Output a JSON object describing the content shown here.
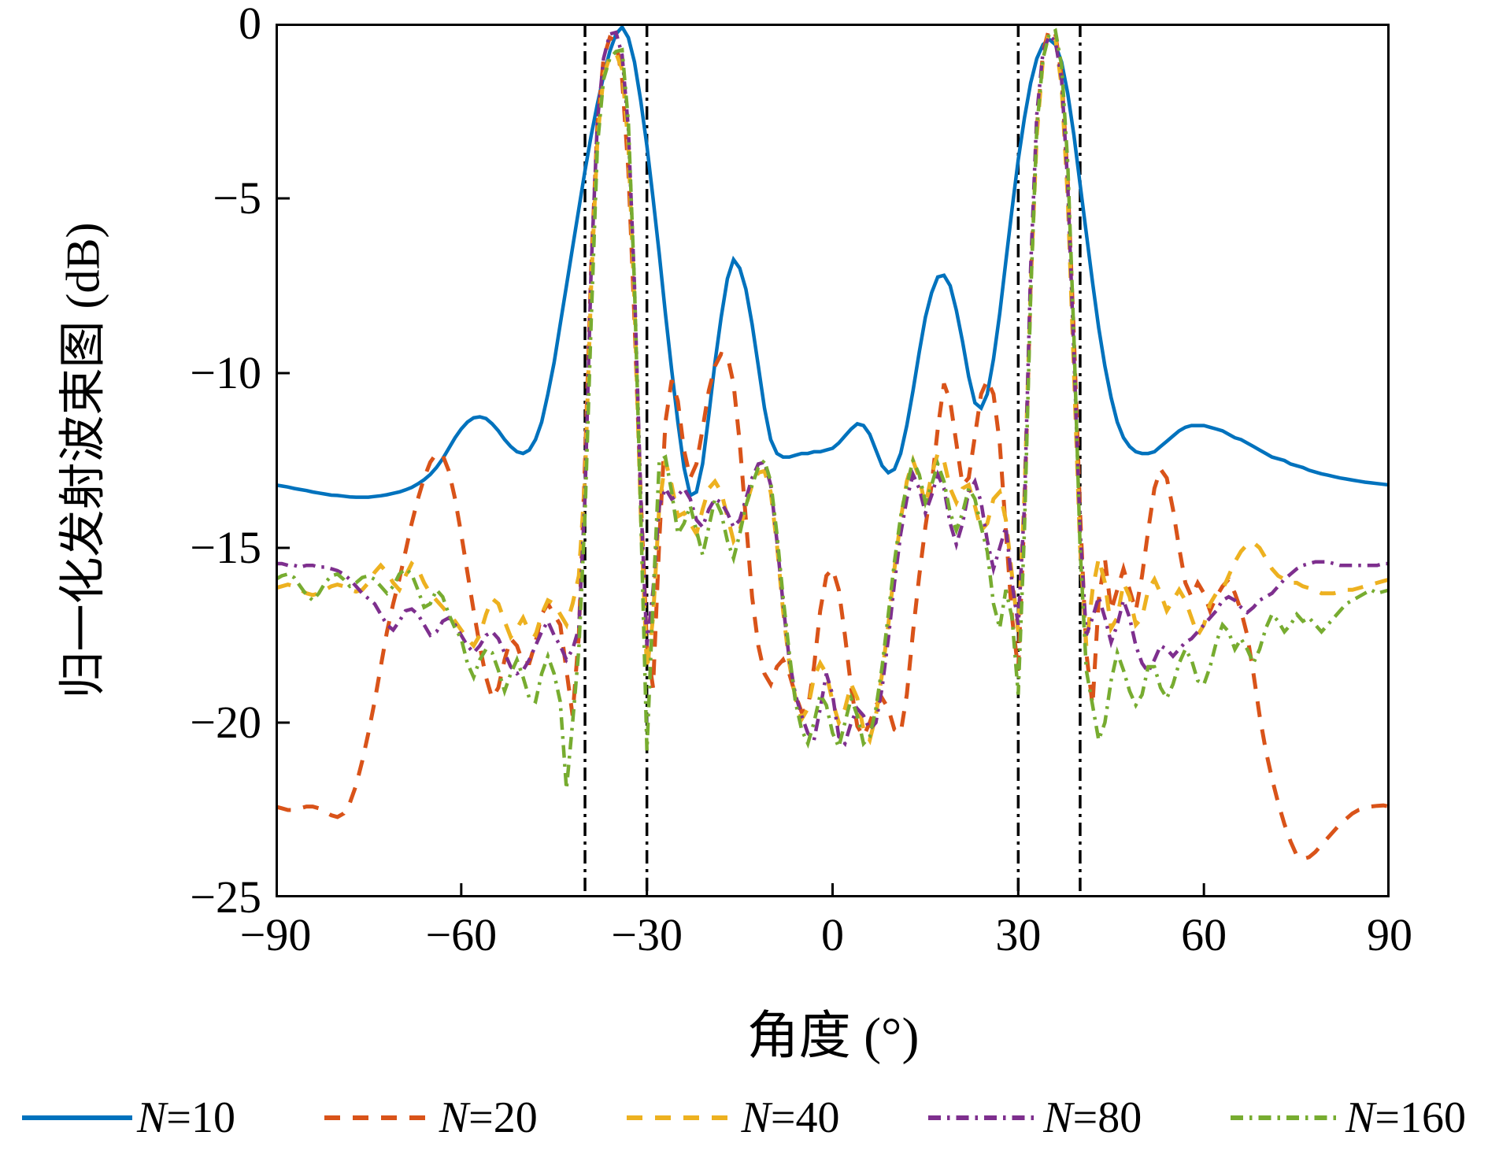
{
  "figure": {
    "description": "Normalized transmit beampattern comparison for different N"
  },
  "chart_data": {
    "type": "line",
    "title": "",
    "xlabel": "角度 (°)",
    "ylabel": "归一化发射波束图 (dB)",
    "xlim": [
      -90,
      90
    ],
    "ylim": [
      -25,
      0
    ],
    "grid": false,
    "legend_position": "below",
    "xticks": {
      "values": [
        -90,
        -60,
        -30,
        0,
        30,
        60,
        90
      ],
      "labels": [
        "−90",
        "−60",
        "−30",
        "0",
        "30",
        "60",
        "90"
      ]
    },
    "yticks": {
      "values": [
        0,
        -5,
        -10,
        -15,
        -20,
        -25
      ],
      "labels": [
        "0",
        "−5",
        "−10",
        "−15",
        "−20",
        "−25"
      ]
    },
    "vlines": {
      "values": [
        -40,
        -30,
        30,
        40
      ],
      "color": "#000000",
      "style": "dash-dot"
    },
    "x": [
      -90,
      -89,
      -88,
      -87,
      -86,
      -85,
      -84,
      -83,
      -82,
      -81,
      -80,
      -79,
      -78,
      -77,
      -76,
      -75,
      -74,
      -73,
      -72,
      -71,
      -70,
      -69,
      -68,
      -67,
      -66,
      -65,
      -64,
      -63,
      -62,
      -61,
      -60,
      -59,
      -58,
      -57,
      -56,
      -55,
      -54,
      -53,
      -52,
      -51,
      -50,
      -49,
      -48,
      -47,
      -46,
      -45,
      -44,
      -43,
      -42,
      -41,
      -40,
      -39,
      -38,
      -37,
      -36,
      -35,
      -34,
      -33,
      -32,
      -31,
      -30,
      -29,
      -28,
      -27,
      -26,
      -25,
      -24,
      -23,
      -22,
      -21,
      -20,
      -19,
      -18,
      -17,
      -16,
      -15,
      -14,
      -13,
      -12,
      -11,
      -10,
      -9,
      -8,
      -7,
      -6,
      -5,
      -4,
      -3,
      -2,
      -1,
      0,
      1,
      2,
      3,
      4,
      5,
      6,
      7,
      8,
      9,
      10,
      11,
      12,
      13,
      14,
      15,
      16,
      17,
      18,
      19,
      20,
      21,
      22,
      23,
      24,
      25,
      26,
      27,
      28,
      29,
      30,
      31,
      32,
      33,
      34,
      35,
      36,
      37,
      38,
      39,
      40,
      41,
      42,
      43,
      44,
      45,
      46,
      47,
      48,
      49,
      50,
      51,
      52,
      53,
      54,
      55,
      56,
      57,
      58,
      59,
      60,
      61,
      62,
      63,
      64,
      65,
      66,
      67,
      68,
      69,
      70,
      71,
      72,
      73,
      74,
      75,
      76,
      77,
      78,
      79,
      80,
      81,
      82,
      83,
      84,
      85,
      86,
      87,
      88,
      89,
      90
    ],
    "series": [
      {
        "name": "N=10",
        "color": "#0072BD",
        "linestyle": "solid",
        "values": [
          -13.2,
          -13.23,
          -13.26,
          -13.3,
          -13.33,
          -13.36,
          -13.4,
          -13.43,
          -13.46,
          -13.49,
          -13.5,
          -13.52,
          -13.54,
          -13.55,
          -13.55,
          -13.55,
          -13.53,
          -13.51,
          -13.48,
          -13.44,
          -13.4,
          -13.34,
          -13.27,
          -13.17,
          -13.05,
          -12.9,
          -12.7,
          -12.45,
          -12.15,
          -11.85,
          -11.6,
          -11.4,
          -11.28,
          -11.25,
          -11.3,
          -11.45,
          -11.65,
          -11.9,
          -12.1,
          -12.25,
          -12.3,
          -12.2,
          -11.9,
          -11.4,
          -10.6,
          -9.7,
          -8.6,
          -7.5,
          -6.4,
          -5.3,
          -4.2,
          -3.2,
          -2.3,
          -1.5,
          -0.8,
          -0.3,
          -0.1,
          -0.4,
          -1.1,
          -2.2,
          -3.5,
          -5.0,
          -6.6,
          -8.3,
          -9.9,
          -11.4,
          -12.7,
          -13.5,
          -13.4,
          -12.6,
          -11.2,
          -9.7,
          -8.4,
          -7.3,
          -6.75,
          -7.0,
          -7.6,
          -8.6,
          -9.8,
          -11.0,
          -11.9,
          -12.3,
          -12.4,
          -12.4,
          -12.35,
          -12.3,
          -12.3,
          -12.25,
          -12.25,
          -12.2,
          -12.15,
          -12.0,
          -11.8,
          -11.6,
          -11.45,
          -11.5,
          -11.75,
          -12.2,
          -12.65,
          -12.85,
          -12.75,
          -12.3,
          -11.5,
          -10.5,
          -9.4,
          -8.4,
          -7.7,
          -7.25,
          -7.2,
          -7.5,
          -8.2,
          -9.1,
          -10.1,
          -10.85,
          -11.0,
          -10.6,
          -9.6,
          -8.3,
          -6.8,
          -5.3,
          -3.9,
          -2.7,
          -1.7,
          -1.0,
          -0.6,
          -0.45,
          -0.6,
          -1.1,
          -2.0,
          -3.2,
          -4.6,
          -6.0,
          -7.4,
          -8.7,
          -9.8,
          -10.7,
          -11.4,
          -11.85,
          -12.1,
          -12.25,
          -12.3,
          -12.3,
          -12.25,
          -12.1,
          -11.95,
          -11.8,
          -11.65,
          -11.55,
          -11.5,
          -11.5,
          -11.5,
          -11.55,
          -11.6,
          -11.65,
          -11.75,
          -11.85,
          -11.9,
          -12.0,
          -12.1,
          -12.2,
          -12.3,
          -12.4,
          -12.45,
          -12.5,
          -12.6,
          -12.65,
          -12.7,
          -12.78,
          -12.83,
          -12.88,
          -12.92,
          -12.96,
          -13.0,
          -13.03,
          -13.06,
          -13.09,
          -13.12,
          -13.14,
          -13.16,
          -13.18,
          -13.2
        ]
      },
      {
        "name": "N=20",
        "color": "#D95319",
        "linestyle": "dashed",
        "values": [
          -22.4,
          -22.45,
          -22.5,
          -22.5,
          -22.45,
          -22.4,
          -22.4,
          -22.45,
          -22.55,
          -22.65,
          -22.7,
          -22.6,
          -22.3,
          -21.8,
          -21.1,
          -20.3,
          -19.4,
          -18.4,
          -17.4,
          -16.6,
          -15.9,
          -15.1,
          -14.3,
          -13.6,
          -13.0,
          -12.55,
          -12.3,
          -12.35,
          -12.8,
          -13.6,
          -14.6,
          -15.7,
          -16.8,
          -17.8,
          -18.7,
          -19.3,
          -19.0,
          -18.2,
          -17.6,
          -17.8,
          -18.3,
          -18.3,
          -17.7,
          -16.9,
          -16.6,
          -16.9,
          -17.2,
          -18.5,
          -19.8,
          -17.5,
          -12.5,
          -7.0,
          -2.9,
          -1.0,
          -0.4,
          -0.5,
          -1.6,
          -4.2,
          -8.5,
          -13.5,
          -17.8,
          -19.0,
          -14.8,
          -11.4,
          -10.2,
          -10.8,
          -12.2,
          -13.0,
          -12.6,
          -11.6,
          -10.5,
          -9.8,
          -9.45,
          -9.5,
          -10.3,
          -12.0,
          -14.2,
          -16.4,
          -17.8,
          -18.6,
          -18.9,
          -18.4,
          -18.2,
          -18.6,
          -19.2,
          -19.7,
          -19.6,
          -18.4,
          -16.8,
          -15.8,
          -15.6,
          -16.2,
          -17.5,
          -19.0,
          -20.1,
          -20.4,
          -20.0,
          -19.5,
          -19.3,
          -19.6,
          -20.2,
          -20.3,
          -19.2,
          -17.4,
          -15.8,
          -14.4,
          -13.2,
          -11.6,
          -10.3,
          -10.8,
          -12.0,
          -13.2,
          -13.0,
          -11.8,
          -10.6,
          -10.2,
          -10.6,
          -12.0,
          -14.5,
          -17.0,
          -18.5,
          -14.0,
          -7.5,
          -3.0,
          -0.8,
          -0.15,
          -0.3,
          -1.5,
          -4.5,
          -9.0,
          -14.0,
          -18.0,
          -19.5,
          -16.5,
          -15.3,
          -16.8,
          -16.2,
          -15.6,
          -16.2,
          -16.8,
          -15.8,
          -14.5,
          -13.3,
          -12.75,
          -13.0,
          -13.9,
          -15.0,
          -16.0,
          -16.4,
          -16.0,
          -16.3,
          -16.8,
          -16.4,
          -16.1,
          -15.9,
          -16.3,
          -16.8,
          -17.5,
          -18.6,
          -19.8,
          -20.8,
          -21.6,
          -22.3,
          -22.9,
          -23.4,
          -23.8,
          -23.9,
          -23.85,
          -23.7,
          -23.5,
          -23.3,
          -23.1,
          -22.9,
          -22.75,
          -22.6,
          -22.5,
          -22.45,
          -22.4,
          -22.38,
          -22.37,
          -22.4
        ]
      },
      {
        "name": "N=40",
        "color": "#EDB120",
        "linestyle": "dashed",
        "values": [
          -16.15,
          -16.1,
          -16.05,
          -16.1,
          -16.2,
          -16.3,
          -16.35,
          -16.3,
          -16.2,
          -16.1,
          -16.05,
          -16.1,
          -16.2,
          -16.25,
          -16.2,
          -16.0,
          -15.7,
          -15.5,
          -15.7,
          -16.0,
          -16.2,
          -15.8,
          -15.45,
          -15.6,
          -16.0,
          -16.3,
          -16.5,
          -16.7,
          -16.9,
          -17.1,
          -17.35,
          -17.6,
          -17.8,
          -17.5,
          -16.9,
          -16.45,
          -16.6,
          -17.1,
          -17.55,
          -17.3,
          -17.0,
          -17.4,
          -17.5,
          -16.9,
          -16.5,
          -16.6,
          -16.9,
          -17.2,
          -16.6,
          -15.8,
          -13.0,
          -7.5,
          -3.3,
          -1.5,
          -0.95,
          -0.85,
          -1.3,
          -3.5,
          -8.0,
          -14.0,
          -18.5,
          -17.0,
          -13.8,
          -12.5,
          -13.2,
          -14.1,
          -14.0,
          -14.3,
          -14.6,
          -13.9,
          -13.3,
          -13.1,
          -13.4,
          -14.1,
          -14.8,
          -14.5,
          -13.8,
          -13.2,
          -12.85,
          -12.8,
          -13.4,
          -14.9,
          -16.8,
          -18.3,
          -19.3,
          -19.9,
          -19.6,
          -18.7,
          -18.3,
          -18.6,
          -19.4,
          -20.0,
          -19.6,
          -18.9,
          -19.3,
          -20.2,
          -20.5,
          -19.8,
          -18.6,
          -17.2,
          -15.6,
          -14.2,
          -13.1,
          -12.5,
          -13.0,
          -13.8,
          -12.9,
          -12.3,
          -12.5,
          -13.3,
          -13.7,
          -13.3,
          -13.2,
          -13.8,
          -14.5,
          -14.3,
          -13.6,
          -13.4,
          -14.2,
          -15.8,
          -17.4,
          -13.5,
          -7.5,
          -3.2,
          -1.0,
          -0.2,
          -0.4,
          -1.8,
          -5.0,
          -10.0,
          -15.0,
          -17.8,
          -16.2,
          -15.3,
          -16.0,
          -17.3,
          -17.0,
          -16.0,
          -16.4,
          -17.2,
          -17.0,
          -16.2,
          -15.9,
          -16.3,
          -16.8,
          -16.5,
          -16.2,
          -16.5,
          -17.0,
          -17.5,
          -17.2,
          -16.6,
          -16.3,
          -16.2,
          -15.8,
          -15.4,
          -15.1,
          -14.9,
          -14.85,
          -15.0,
          -15.3,
          -15.6,
          -15.8,
          -15.9,
          -16.0,
          -16.0,
          -16.1,
          -16.15,
          -16.2,
          -16.3,
          -16.3,
          -16.3,
          -16.25,
          -16.2,
          -16.2,
          -16.15,
          -16.1,
          -16.05,
          -16.0,
          -15.95,
          -15.9
        ]
      },
      {
        "name": "N=80",
        "color": "#7E2F8E",
        "linestyle": "dash-dot",
        "values": [
          -15.45,
          -15.45,
          -15.5,
          -15.5,
          -15.55,
          -15.5,
          -15.5,
          -15.55,
          -15.55,
          -15.6,
          -15.65,
          -15.75,
          -15.9,
          -16.1,
          -16.3,
          -16.45,
          -16.6,
          -16.9,
          -17.2,
          -17.35,
          -17.1,
          -16.8,
          -16.75,
          -16.9,
          -17.2,
          -17.5,
          -17.4,
          -17.1,
          -17.0,
          -17.2,
          -17.5,
          -17.8,
          -18.0,
          -17.8,
          -17.5,
          -17.4,
          -17.6,
          -18.0,
          -18.4,
          -18.6,
          -18.5,
          -18.2,
          -17.8,
          -17.4,
          -17.1,
          -17.5,
          -17.8,
          -18.2,
          -17.9,
          -17.3,
          -13.5,
          -7.0,
          -2.8,
          -1.0,
          -0.3,
          -0.25,
          -0.9,
          -3.0,
          -7.5,
          -13.5,
          -17.8,
          -16.2,
          -13.8,
          -13.3,
          -13.6,
          -13.5,
          -13.3,
          -13.6,
          -14.2,
          -14.4,
          -13.9,
          -13.6,
          -13.7,
          -14.0,
          -14.4,
          -14.2,
          -13.6,
          -13.0,
          -12.6,
          -12.55,
          -13.2,
          -14.8,
          -16.6,
          -18.2,
          -19.2,
          -19.8,
          -20.3,
          -20.5,
          -19.6,
          -18.6,
          -19.2,
          -20.4,
          -20.6,
          -20.0,
          -19.6,
          -19.8,
          -20.2,
          -20.0,
          -19.0,
          -17.6,
          -16.0,
          -14.6,
          -13.6,
          -12.9,
          -13.3,
          -14.0,
          -13.5,
          -12.9,
          -13.3,
          -14.3,
          -14.9,
          -14.3,
          -13.4,
          -13.1,
          -13.7,
          -14.8,
          -15.6,
          -15.0,
          -14.4,
          -16.0,
          -17.2,
          -13.8,
          -7.0,
          -2.6,
          -0.8,
          -0.35,
          -0.5,
          -1.6,
          -4.6,
          -9.5,
          -14.5,
          -17.5,
          -17.0,
          -16.4,
          -17.0,
          -17.7,
          -17.2,
          -16.5,
          -17.0,
          -17.8,
          -18.3,
          -18.55,
          -18.2,
          -17.8,
          -17.9,
          -18.1,
          -17.9,
          -17.7,
          -17.6,
          -17.4,
          -17.2,
          -17.0,
          -16.8,
          -16.5,
          -16.4,
          -16.5,
          -16.7,
          -16.85,
          -16.7,
          -16.5,
          -16.4,
          -16.3,
          -16.1,
          -15.9,
          -15.75,
          -15.6,
          -15.5,
          -15.45,
          -15.4,
          -15.4,
          -15.4,
          -15.45,
          -15.5,
          -15.5,
          -15.5,
          -15.5,
          -15.5,
          -15.5,
          -15.5,
          -15.45,
          -15.45
        ]
      },
      {
        "name": "N=160",
        "color": "#77AC30",
        "linestyle": "dash-dot",
        "values": [
          -15.9,
          -15.8,
          -15.75,
          -15.85,
          -16.1,
          -16.35,
          -16.5,
          -16.3,
          -16.0,
          -15.8,
          -15.75,
          -15.9,
          -16.1,
          -16.0,
          -15.85,
          -15.8,
          -15.9,
          -16.1,
          -16.3,
          -16.1,
          -15.75,
          -15.6,
          -15.75,
          -16.2,
          -16.7,
          -16.6,
          -16.2,
          -16.4,
          -16.9,
          -17.3,
          -17.6,
          -18.3,
          -18.7,
          -18.2,
          -17.9,
          -18.0,
          -18.5,
          -19.1,
          -18.6,
          -18.2,
          -18.7,
          -19.3,
          -19.4,
          -18.6,
          -18.1,
          -18.6,
          -19.4,
          -21.9,
          -20.0,
          -17.9,
          -14.0,
          -8.5,
          -3.5,
          -1.6,
          -1.0,
          -0.8,
          -0.75,
          -2.8,
          -7.5,
          -14.0,
          -20.8,
          -16.5,
          -12.5,
          -12.4,
          -13.4,
          -14.6,
          -14.3,
          -13.8,
          -14.5,
          -15.2,
          -14.4,
          -13.6,
          -14.0,
          -14.8,
          -15.3,
          -14.6,
          -13.8,
          -13.2,
          -12.7,
          -12.5,
          -13.1,
          -14.6,
          -16.4,
          -18.0,
          -19.4,
          -20.2,
          -20.6,
          -20.0,
          -19.2,
          -19.5,
          -20.3,
          -20.7,
          -20.0,
          -19.3,
          -19.8,
          -20.6,
          -20.4,
          -19.6,
          -18.4,
          -16.9,
          -15.4,
          -14.1,
          -13.2,
          -12.5,
          -12.9,
          -13.7,
          -13.2,
          -12.6,
          -13.1,
          -14.0,
          -14.5,
          -14.0,
          -13.3,
          -13.6,
          -14.4,
          -15.1,
          -16.6,
          -17.3,
          -16.2,
          -17.0,
          -19.2,
          -14.5,
          -7.8,
          -3.0,
          -1.0,
          -0.3,
          -0.2,
          -1.2,
          -4.0,
          -9.0,
          -15.0,
          -18.5,
          -19.5,
          -20.5,
          -20.0,
          -18.8,
          -18.0,
          -18.5,
          -19.1,
          -19.5,
          -19.2,
          -18.4,
          -18.4,
          -19.0,
          -19.3,
          -18.9,
          -18.3,
          -17.9,
          -18.2,
          -18.8,
          -18.9,
          -18.4,
          -17.7,
          -17.2,
          -17.4,
          -17.9,
          -17.6,
          -17.9,
          -18.3,
          -17.9,
          -17.3,
          -16.9,
          -17.1,
          -17.4,
          -17.2,
          -16.9,
          -17.1,
          -17.0,
          -17.2,
          -17.4,
          -17.2,
          -17.0,
          -16.8,
          -16.6,
          -16.5,
          -16.4,
          -16.3,
          -16.2,
          -16.3,
          -16.25,
          -16.2
        ]
      }
    ]
  }
}
